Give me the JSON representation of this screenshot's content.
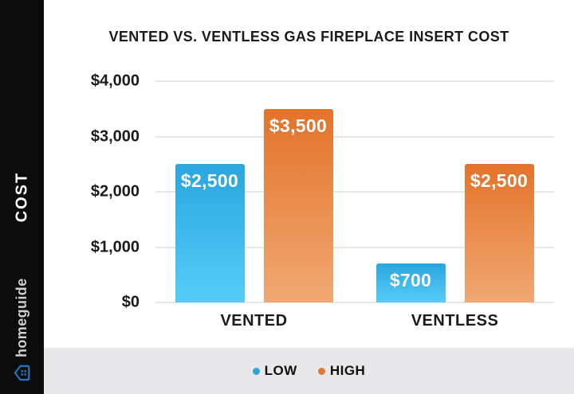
{
  "sidebar": {
    "vertical_label": "COST",
    "brand": "homeguide",
    "logo_icon": "house-icon",
    "logo_color": "#2176be"
  },
  "chart_data": {
    "type": "bar",
    "title": "VENTED VS. VENTLESS GAS FIREPLACE INSERT COST",
    "categories": [
      "VENTED",
      "VENTLESS"
    ],
    "series": [
      {
        "name": "LOW",
        "values": [
          2500,
          700
        ],
        "labels": [
          "$2,500",
          "$700"
        ],
        "color_top": "#2aa6df",
        "color_bottom": "#56ccf8"
      },
      {
        "name": "HIGH",
        "values": [
          3500,
          2500
        ],
        "labels": [
          "$3,500",
          "$2,500"
        ],
        "color_top": "#e3732a",
        "color_bottom": "#f0a872"
      }
    ],
    "xlabel": "",
    "ylabel": "COST",
    "ylim": [
      0,
      4000
    ],
    "yticks": [
      {
        "value": 4000,
        "label": "$4,000"
      },
      {
        "value": 3000,
        "label": "$3,000"
      },
      {
        "value": 2000,
        "label": "$2,000"
      },
      {
        "value": 1000,
        "label": "$1,000"
      },
      {
        "value": 0,
        "label": "$0"
      }
    ],
    "grid": true,
    "legend_position": "bottom",
    "legend": [
      {
        "label": "LOW",
        "color": "#2aa6df"
      },
      {
        "label": "HIGH",
        "color": "#e07b30"
      }
    ]
  }
}
